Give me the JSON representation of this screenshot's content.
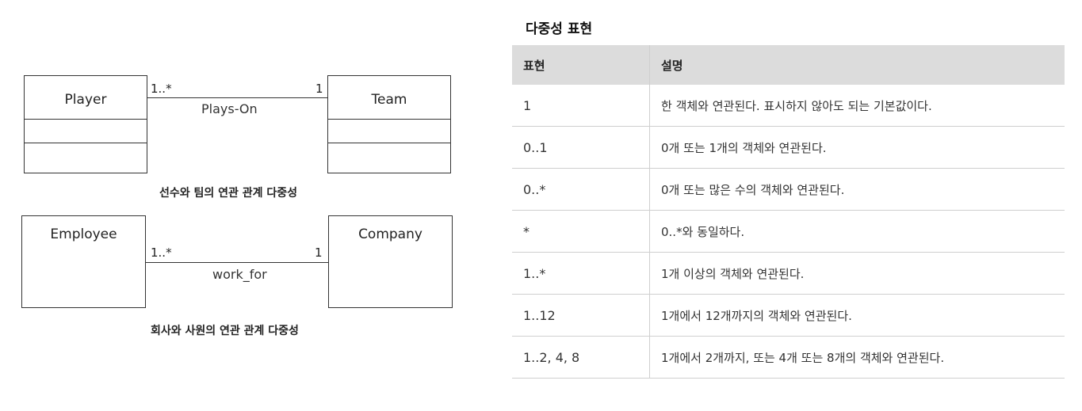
{
  "diagram1": {
    "class_left": "Player",
    "class_right": "Team",
    "mult_left": "1..*",
    "mult_right": "1",
    "association": "Plays-On",
    "caption": "선수와 팀의 연관 관계 다중성"
  },
  "diagram2": {
    "class_left": "Employee",
    "class_right": "Company",
    "mult_left": "1..*",
    "mult_right": "1",
    "association": "work_for",
    "caption": "회사와 사원의 연관 관계 다중성"
  },
  "table": {
    "title": "다중성 표현",
    "headers": [
      "표현",
      "설명"
    ],
    "rows": [
      {
        "expr": "1",
        "desc": "한 객체와 연관된다. 표시하지 않아도 되는 기본값이다."
      },
      {
        "expr": "0..1",
        "desc": "0개 또는 1개의 객체와 연관된다."
      },
      {
        "expr": "0..*",
        "desc": "0개 또는 많은 수의 객체와 연관된다."
      },
      {
        "expr": "*",
        "desc": "0..*와 동일하다."
      },
      {
        "expr": "1..*",
        "desc": "1개 이상의 객체와 연관된다."
      },
      {
        "expr": "1..12",
        "desc": "1개에서 12개까지의 객체와 연관된다."
      },
      {
        "expr": "1..2, 4, 8",
        "desc": "1개에서 2개까지, 또는 4개 또는 8개의 객체와 연관된다."
      }
    ]
  }
}
